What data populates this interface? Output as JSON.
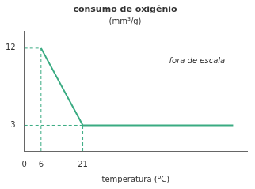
{
  "chart_data": {
    "type": "line",
    "title": "consumo de oxigênio",
    "subtitle": "(mm³/g)",
    "xlabel": "temperatura (ºC)",
    "series": [
      {
        "color": "#3aab82",
        "line_style": "solid",
        "x": [
          6,
          21,
          75
        ],
        "values": [
          12,
          3,
          3
        ]
      },
      {
        "color": "#3aab82",
        "line_style": "dashed",
        "x": [
          6,
          6
        ],
        "values": [
          0,
          12
        ]
      },
      {
        "color": "#3aab82",
        "line_style": "dashed",
        "x": [
          0,
          6
        ],
        "values": [
          12,
          12
        ]
      },
      {
        "color": "#3aab82",
        "line_style": "dashed",
        "x": [
          21,
          21
        ],
        "values": [
          0,
          3
        ]
      },
      {
        "color": "#3aab82",
        "line_style": "dashed",
        "x": [
          0,
          21
        ],
        "values": [
          3,
          3
        ]
      }
    ],
    "xlim": [
      0,
      80
    ],
    "xticks": [
      0,
      6,
      21
    ],
    "ylim": [
      0,
      14
    ],
    "yticks": [
      3,
      12
    ],
    "grid": false,
    "annotations": [
      {
        "text": "fora de escala",
        "x": 52,
        "y": 10.5
      }
    ]
  }
}
